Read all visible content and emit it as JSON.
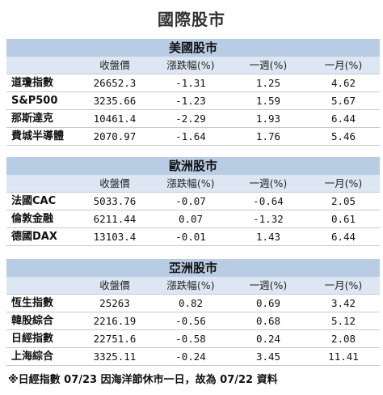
{
  "title": "國際股市",
  "columns": [
    "",
    "收盤價",
    "漲跌幅(%)",
    "一週(%)",
    "一月(%)"
  ],
  "sections": [
    {
      "name": "美國股市",
      "rows": [
        [
          "道瓊指數",
          "26652.3",
          "-1.31",
          "1.25",
          "4.62"
        ],
        [
          "S&P500",
          "3235.66",
          "-1.23",
          "1.59",
          "5.67"
        ],
        [
          "那斯達克",
          "10461.4",
          "-2.29",
          "1.93",
          "6.44"
        ],
        [
          "費城半導體",
          "2070.97",
          "-1.64",
          "1.76",
          "5.46"
        ]
      ]
    },
    {
      "name": "歐洲股市",
      "rows": [
        [
          "法國CAC",
          "5033.76",
          "-0.07",
          "-0.64",
          "2.05"
        ],
        [
          "倫敦金融",
          "6211.44",
          "0.07",
          "-1.32",
          "0.61"
        ],
        [
          "德國DAX",
          "13103.4",
          "-0.01",
          "1.43",
          "6.44"
        ]
      ]
    },
    {
      "name": "亞洲股市",
      "rows": [
        [
          "恆生指數",
          "25263",
          "0.82",
          "0.69",
          "3.42"
        ],
        [
          "韓股綜合",
          "2216.19",
          "-0.56",
          "0.68",
          "5.12"
        ],
        [
          "日經指數",
          "22751.6",
          "-0.58",
          "0.24",
          "2.08"
        ],
        [
          "上海綜合",
          "3325.11",
          "-0.24",
          "3.45",
          "11.41"
        ]
      ]
    }
  ],
  "footnote": "※日經指數 07/23 因海洋節休市一日，故為 07/22 資料"
}
